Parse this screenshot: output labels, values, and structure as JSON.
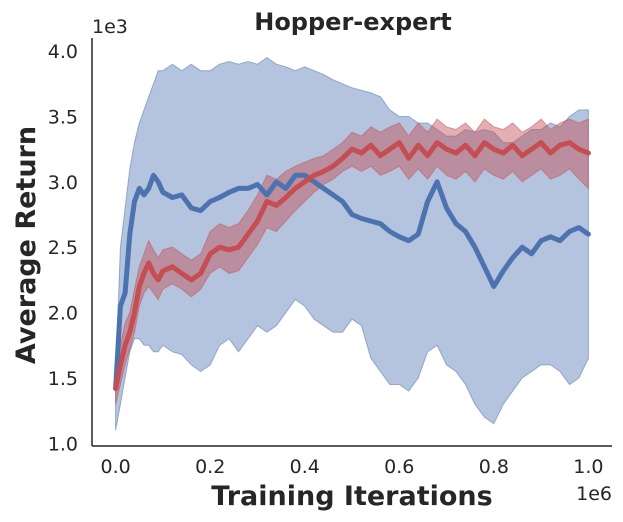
{
  "chart_data": {
    "type": "line",
    "title": "Hopper-expert",
    "xlabel": "Training Iterations",
    "ylabel": "Average Return",
    "x_offset_label": "1e6",
    "y_offset_label": "1e3",
    "xlim": [
      -0.05,
      1.05
    ],
    "ylim": [
      0.98,
      4.1
    ],
    "x_ticks": [
      0.0,
      0.2,
      0.4,
      0.6,
      0.8,
      1.0
    ],
    "x_tick_labels": [
      "0.0",
      "0.2",
      "0.4",
      "0.6",
      "0.8",
      "1.0"
    ],
    "y_ticks": [
      1.0,
      1.5,
      2.0,
      2.5,
      3.0,
      3.5,
      4.0
    ],
    "y_tick_labels": [
      "1.0",
      "1.5",
      "2.0",
      "2.5",
      "3.0",
      "3.5",
      "4.0"
    ],
    "grid": false,
    "legend": "none",
    "series": [
      {
        "color": "#4c72b0",
        "band_color": "#4c72b0",
        "x": [
          0.0,
          0.01,
          0.02,
          0.03,
          0.04,
          0.05,
          0.06,
          0.07,
          0.08,
          0.09,
          0.1,
          0.12,
          0.14,
          0.16,
          0.18,
          0.2,
          0.22,
          0.24,
          0.26,
          0.28,
          0.3,
          0.32,
          0.34,
          0.36,
          0.38,
          0.4,
          0.42,
          0.44,
          0.46,
          0.48,
          0.5,
          0.52,
          0.54,
          0.56,
          0.58,
          0.6,
          0.62,
          0.64,
          0.66,
          0.68,
          0.7,
          0.72,
          0.74,
          0.76,
          0.78,
          0.8,
          0.82,
          0.84,
          0.86,
          0.88,
          0.9,
          0.92,
          0.94,
          0.96,
          0.98,
          1.0
        ],
        "values": [
          1.42,
          2.05,
          2.15,
          2.6,
          2.85,
          2.95,
          2.9,
          2.95,
          3.05,
          3.0,
          2.92,
          2.88,
          2.9,
          2.8,
          2.78,
          2.85,
          2.88,
          2.92,
          2.95,
          2.95,
          2.98,
          2.9,
          3.0,
          2.95,
          3.05,
          3.05,
          3.0,
          2.95,
          2.9,
          2.85,
          2.75,
          2.72,
          2.7,
          2.68,
          2.62,
          2.58,
          2.55,
          2.6,
          2.85,
          3.0,
          2.8,
          2.68,
          2.62,
          2.5,
          2.35,
          2.2,
          2.32,
          2.42,
          2.5,
          2.45,
          2.55,
          2.58,
          2.55,
          2.62,
          2.65,
          2.6
        ],
        "lower": [
          1.1,
          1.3,
          1.5,
          1.7,
          1.8,
          1.8,
          1.75,
          1.75,
          1.7,
          1.7,
          1.75,
          1.7,
          1.68,
          1.6,
          1.55,
          1.6,
          1.75,
          1.8,
          1.7,
          1.8,
          1.9,
          1.85,
          1.9,
          2.0,
          2.1,
          2.05,
          1.95,
          1.9,
          1.85,
          1.85,
          1.95,
          1.9,
          1.65,
          1.55,
          1.45,
          1.45,
          1.4,
          1.5,
          1.7,
          1.75,
          1.6,
          1.55,
          1.45,
          1.3,
          1.2,
          1.15,
          1.3,
          1.4,
          1.5,
          1.55,
          1.6,
          1.6,
          1.55,
          1.45,
          1.5,
          1.65
        ],
        "upper": [
          1.5,
          2.5,
          2.8,
          3.1,
          3.3,
          3.45,
          3.55,
          3.65,
          3.75,
          3.85,
          3.85,
          3.9,
          3.85,
          3.9,
          3.85,
          3.85,
          3.9,
          3.92,
          3.9,
          3.92,
          3.9,
          3.95,
          3.9,
          3.88,
          3.85,
          3.88,
          3.85,
          3.82,
          3.78,
          3.75,
          3.72,
          3.7,
          3.68,
          3.65,
          3.55,
          3.5,
          3.5,
          3.45,
          3.45,
          3.4,
          3.35,
          3.35,
          3.4,
          3.38,
          3.4,
          3.38,
          3.3,
          3.3,
          3.35,
          3.4,
          3.4,
          3.45,
          3.42,
          3.5,
          3.55,
          3.55
        ]
      },
      {
        "color": "#c44e52",
        "band_color": "#c44e52",
        "x": [
          0.0,
          0.01,
          0.02,
          0.03,
          0.04,
          0.05,
          0.06,
          0.07,
          0.08,
          0.09,
          0.1,
          0.12,
          0.14,
          0.16,
          0.18,
          0.2,
          0.22,
          0.24,
          0.26,
          0.28,
          0.3,
          0.32,
          0.34,
          0.36,
          0.38,
          0.4,
          0.42,
          0.44,
          0.46,
          0.48,
          0.5,
          0.52,
          0.54,
          0.56,
          0.58,
          0.6,
          0.62,
          0.64,
          0.66,
          0.68,
          0.7,
          0.72,
          0.74,
          0.76,
          0.78,
          0.8,
          0.82,
          0.84,
          0.86,
          0.88,
          0.9,
          0.92,
          0.94,
          0.96,
          0.98,
          1.0
        ],
        "values": [
          1.42,
          1.6,
          1.75,
          1.85,
          2.0,
          2.2,
          2.3,
          2.38,
          2.3,
          2.25,
          2.32,
          2.35,
          2.3,
          2.25,
          2.3,
          2.45,
          2.5,
          2.48,
          2.5,
          2.6,
          2.7,
          2.85,
          2.82,
          2.88,
          2.95,
          3.0,
          3.05,
          3.08,
          3.12,
          3.18,
          3.25,
          3.22,
          3.28,
          3.2,
          3.25,
          3.3,
          3.18,
          3.28,
          3.2,
          3.3,
          3.25,
          3.22,
          3.28,
          3.2,
          3.3,
          3.25,
          3.22,
          3.28,
          3.2,
          3.25,
          3.3,
          3.22,
          3.28,
          3.3,
          3.25,
          3.22
        ],
        "lower": [
          1.3,
          1.45,
          1.6,
          1.72,
          1.85,
          2.05,
          2.15,
          2.2,
          2.15,
          2.1,
          2.18,
          2.22,
          2.18,
          2.12,
          2.18,
          2.3,
          2.35,
          2.3,
          2.32,
          2.42,
          2.52,
          2.65,
          2.62,
          2.7,
          2.78,
          2.85,
          2.92,
          2.98,
          3.02,
          3.08,
          3.12,
          3.08,
          3.12,
          3.05,
          3.08,
          3.12,
          3.02,
          3.1,
          3.02,
          3.12,
          3.05,
          3.02,
          3.08,
          3.0,
          3.1,
          3.05,
          3.02,
          3.08,
          3.0,
          3.05,
          3.1,
          3.02,
          3.05,
          3.1,
          3.02,
          2.95
        ],
        "upper": [
          1.55,
          1.75,
          1.92,
          2.0,
          2.18,
          2.35,
          2.45,
          2.55,
          2.48,
          2.42,
          2.48,
          2.5,
          2.45,
          2.4,
          2.45,
          2.62,
          2.68,
          2.65,
          2.68,
          2.78,
          2.9,
          3.05,
          3.02,
          3.08,
          3.12,
          3.15,
          3.18,
          3.2,
          3.25,
          3.3,
          3.38,
          3.35,
          3.42,
          3.38,
          3.42,
          3.45,
          3.35,
          3.45,
          3.38,
          3.48,
          3.42,
          3.4,
          3.45,
          3.38,
          3.48,
          3.42,
          3.4,
          3.45,
          3.38,
          3.42,
          3.48,
          3.4,
          3.45,
          3.48,
          3.45,
          3.48
        ]
      }
    ]
  }
}
